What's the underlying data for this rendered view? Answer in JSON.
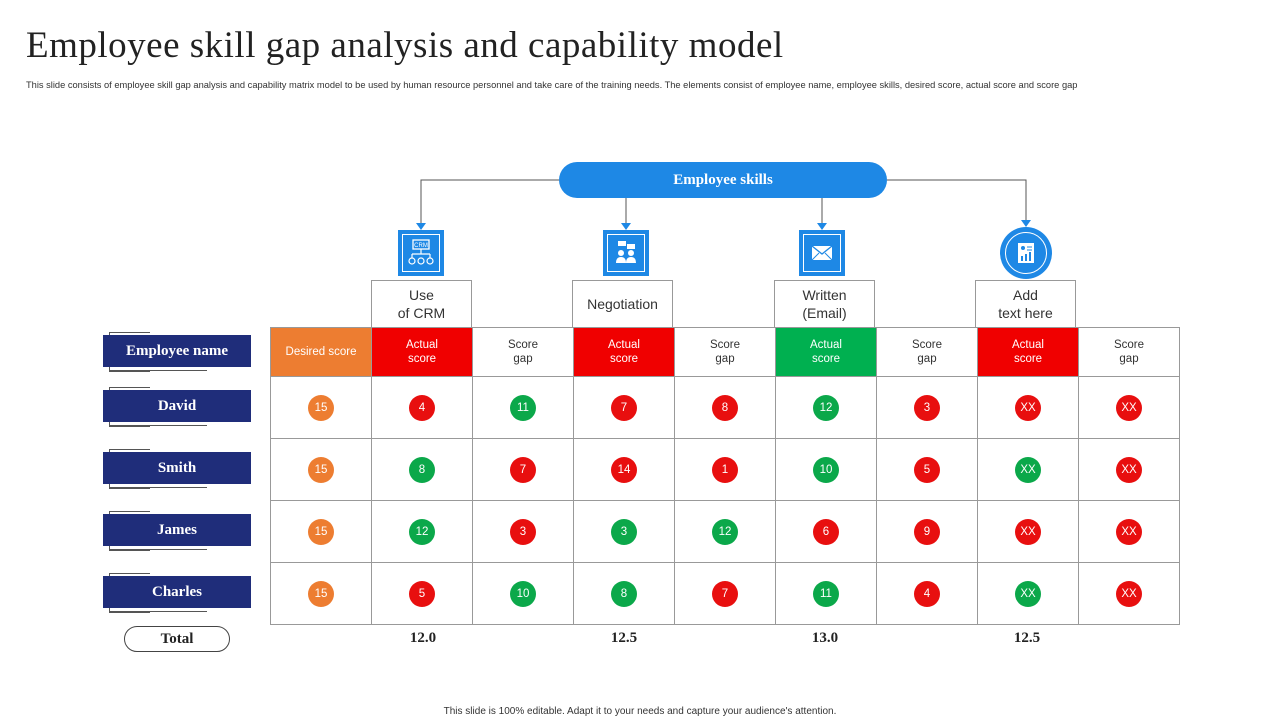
{
  "title": "Employee skill gap analysis and capability model",
  "subtitle": "This slide consists of employee skill gap analysis and capability matrix model to be used by human resource personnel and take care of the training needs. The elements consist of employee name, employee skills, desired score, actual score and score gap",
  "footer": "This slide is 100% editable. Adapt it to your needs and capture your audience's attention.",
  "skills_header": "Employee skills",
  "skills": [
    {
      "icon": "crm-icon",
      "line1": "Use",
      "line2": "of CRM"
    },
    {
      "icon": "negotiation-icon",
      "line1": "Negotiation",
      "line2": ""
    },
    {
      "icon": "email-icon",
      "line1": "Written",
      "line2": "(Email)"
    },
    {
      "icon": "report-icon",
      "line1": "Add",
      "line2": "text here"
    }
  ],
  "row_header": "Employee name",
  "column_headers": {
    "desired": "Desired score",
    "actual_line1": "Actual",
    "actual_line2": "score",
    "gap_line1": "Score",
    "gap_line2": "gap"
  },
  "colors": {
    "orange": "#ed7d31",
    "red": "#e80f0f",
    "green": "#0ba84a",
    "navy": "#1f2d7a",
    "blue": "#1e88e5"
  },
  "employees": [
    {
      "name": "David",
      "desired": "15",
      "scores": [
        {
          "v": "4",
          "c": "red"
        },
        {
          "v": "11",
          "c": "green"
        },
        {
          "v": "7",
          "c": "red"
        },
        {
          "v": "8",
          "c": "red"
        },
        {
          "v": "12",
          "c": "green"
        },
        {
          "v": "3",
          "c": "red"
        },
        {
          "v": "XX",
          "c": "red"
        },
        {
          "v": "XX",
          "c": "red"
        }
      ]
    },
    {
      "name": "Smith",
      "desired": "15",
      "scores": [
        {
          "v": "8",
          "c": "green"
        },
        {
          "v": "7",
          "c": "red"
        },
        {
          "v": "14",
          "c": "red"
        },
        {
          "v": "1",
          "c": "red"
        },
        {
          "v": "10",
          "c": "green"
        },
        {
          "v": "5",
          "c": "red"
        },
        {
          "v": "XX",
          "c": "green"
        },
        {
          "v": "XX",
          "c": "red"
        }
      ]
    },
    {
      "name": "James",
      "desired": "15",
      "scores": [
        {
          "v": "12",
          "c": "green"
        },
        {
          "v": "3",
          "c": "red"
        },
        {
          "v": "3",
          "c": "green"
        },
        {
          "v": "12",
          "c": "green"
        },
        {
          "v": "6",
          "c": "red"
        },
        {
          "v": "9",
          "c": "red"
        },
        {
          "v": "XX",
          "c": "red"
        },
        {
          "v": "XX",
          "c": "red"
        }
      ]
    },
    {
      "name": "Charles",
      "desired": "15",
      "scores": [
        {
          "v": "5",
          "c": "red"
        },
        {
          "v": "10",
          "c": "green"
        },
        {
          "v": "8",
          "c": "green"
        },
        {
          "v": "7",
          "c": "red"
        },
        {
          "v": "11",
          "c": "green"
        },
        {
          "v": "4",
          "c": "red"
        },
        {
          "v": "XX",
          "c": "green"
        },
        {
          "v": "XX",
          "c": "red"
        }
      ]
    }
  ],
  "total_label": "Total",
  "totals": [
    "12.0",
    "12.5",
    "13.0",
    "12.5"
  ]
}
